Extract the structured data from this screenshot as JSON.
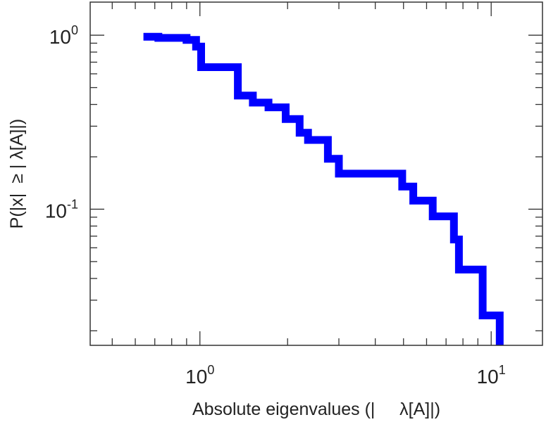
{
  "chart_data": {
    "type": "line",
    "step": true,
    "x_scale": "log",
    "y_scale": "log",
    "xlim": [
      0.42,
      15
    ],
    "ylim": [
      0.0165,
      1.55
    ],
    "grid": false,
    "legend": "none",
    "xlabel": "Absolute eigenvalues (|     λ[A]|)",
    "ylabel": "P(|x|  ≥ | λ[A]|)",
    "x_ticks": [
      {
        "value": 1,
        "base": "10",
        "exp": "0"
      },
      {
        "value": 10,
        "base": "10",
        "exp": "1"
      }
    ],
    "y_ticks": [
      {
        "value": 1,
        "base": "10",
        "exp": "0"
      },
      {
        "value": 0.1,
        "base": "10",
        "exp": "-1"
      }
    ],
    "series": [
      {
        "color": "#0000ff",
        "points": [
          {
            "x": 0.64,
            "y": 0.98
          },
          {
            "x": 0.72,
            "y": 0.98
          },
          {
            "x": 0.72,
            "y": 0.965
          },
          {
            "x": 0.9,
            "y": 0.965
          },
          {
            "x": 0.9,
            "y": 0.94
          },
          {
            "x": 0.97,
            "y": 0.94
          },
          {
            "x": 0.97,
            "y": 0.86
          },
          {
            "x": 1.01,
            "y": 0.86
          },
          {
            "x": 1.01,
            "y": 0.655
          },
          {
            "x": 1.35,
            "y": 0.655
          },
          {
            "x": 1.35,
            "y": 0.45
          },
          {
            "x": 1.52,
            "y": 0.45
          },
          {
            "x": 1.52,
            "y": 0.41
          },
          {
            "x": 1.72,
            "y": 0.41
          },
          {
            "x": 1.72,
            "y": 0.385
          },
          {
            "x": 1.97,
            "y": 0.385
          },
          {
            "x": 1.97,
            "y": 0.33
          },
          {
            "x": 2.2,
            "y": 0.33
          },
          {
            "x": 2.2,
            "y": 0.275
          },
          {
            "x": 2.35,
            "y": 0.275
          },
          {
            "x": 2.35,
            "y": 0.25
          },
          {
            "x": 2.75,
            "y": 0.25
          },
          {
            "x": 2.75,
            "y": 0.195
          },
          {
            "x": 3.0,
            "y": 0.195
          },
          {
            "x": 3.0,
            "y": 0.16
          },
          {
            "x": 4.95,
            "y": 0.16
          },
          {
            "x": 4.95,
            "y": 0.135
          },
          {
            "x": 5.4,
            "y": 0.135
          },
          {
            "x": 5.4,
            "y": 0.112
          },
          {
            "x": 6.3,
            "y": 0.112
          },
          {
            "x": 6.3,
            "y": 0.091
          },
          {
            "x": 7.45,
            "y": 0.091
          },
          {
            "x": 7.45,
            "y": 0.067
          },
          {
            "x": 7.75,
            "y": 0.067
          },
          {
            "x": 7.75,
            "y": 0.045
          },
          {
            "x": 9.35,
            "y": 0.045
          },
          {
            "x": 9.35,
            "y": 0.0245
          },
          {
            "x": 10.7,
            "y": 0.0245
          },
          {
            "x": 10.7,
            "y": 0.0165
          }
        ]
      }
    ]
  }
}
